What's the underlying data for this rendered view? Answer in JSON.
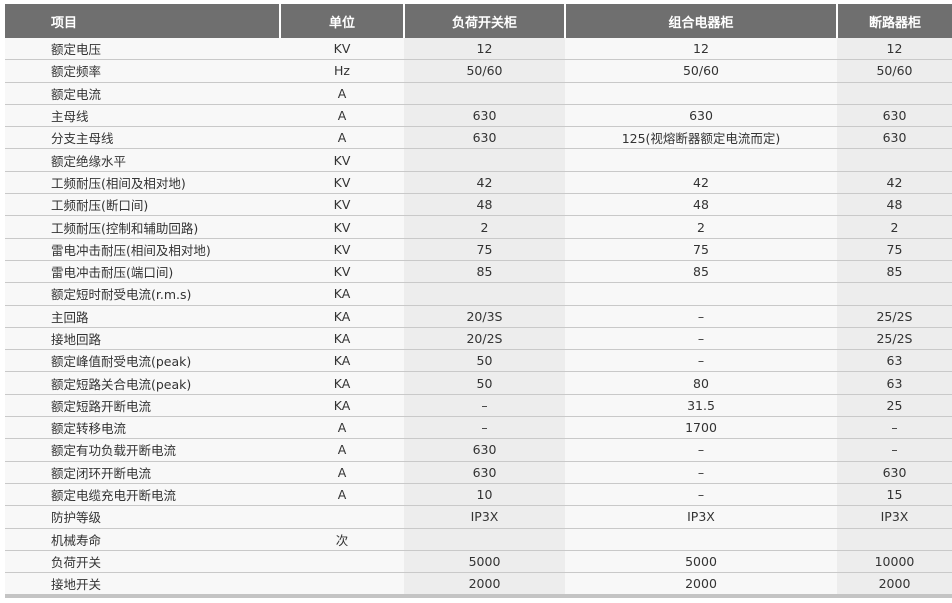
{
  "headers": [
    "项目",
    "单位",
    "负荷开关柜",
    "组合电器柜",
    "断路器柜"
  ],
  "rows": [
    [
      "额定电压",
      "KV",
      "12",
      "12",
      "12"
    ],
    [
      "额定频率",
      "Hz",
      "50/60",
      "50/60",
      "50/60"
    ],
    [
      "额定电流",
      "A",
      "",
      "",
      ""
    ],
    [
      "主母线",
      "A",
      "630",
      "630",
      "630"
    ],
    [
      "分支主母线",
      "A",
      "630",
      "125(视熔断器额定电流而定)",
      "630"
    ],
    [
      "额定绝缘水平",
      "KV",
      "",
      "",
      ""
    ],
    [
      "工频耐压(相间及相对地)",
      "KV",
      "42",
      "42",
      "42"
    ],
    [
      "工频耐压(断口间)",
      "KV",
      "48",
      "48",
      "48"
    ],
    [
      "工频耐压(控制和辅助回路)",
      "KV",
      "2",
      "2",
      "2"
    ],
    [
      "雷电冲击耐压(相间及相对地)",
      "KV",
      "75",
      "75",
      "75"
    ],
    [
      "雷电冲击耐压(端口间)",
      "KV",
      "85",
      "85",
      "85"
    ],
    [
      "额定短时耐受电流(r.m.s)",
      "KA",
      "",
      "",
      ""
    ],
    [
      "主回路",
      "KA",
      "20/3S",
      "–",
      "25/2S"
    ],
    [
      "接地回路",
      "KA",
      "20/2S",
      "–",
      "25/2S"
    ],
    [
      "额定峰值耐受电流(peak)",
      "KA",
      "50",
      "–",
      "63"
    ],
    [
      "额定短路关合电流(peak)",
      "KA",
      "50",
      "80",
      "63"
    ],
    [
      "额定短路开断电流",
      "KA",
      "–",
      "31.5",
      "25"
    ],
    [
      "额定转移电流",
      "A",
      "–",
      "1700",
      "–"
    ],
    [
      "额定有功负载开断电流",
      "A",
      "630",
      "–",
      "–"
    ],
    [
      "额定闭环开断电流",
      "A",
      "630",
      "–",
      "630"
    ],
    [
      "额定电缆充电开断电流",
      "A",
      "10",
      "–",
      "15"
    ],
    [
      "防护等级",
      "",
      "IP3X",
      "IP3X",
      "IP3X"
    ],
    [
      "机械寿命",
      "次",
      "",
      "",
      ""
    ],
    [
      "负荷开关",
      "",
      "5000",
      "5000",
      "10000"
    ],
    [
      "接地开关",
      "",
      "2000",
      "2000",
      "2000"
    ]
  ]
}
